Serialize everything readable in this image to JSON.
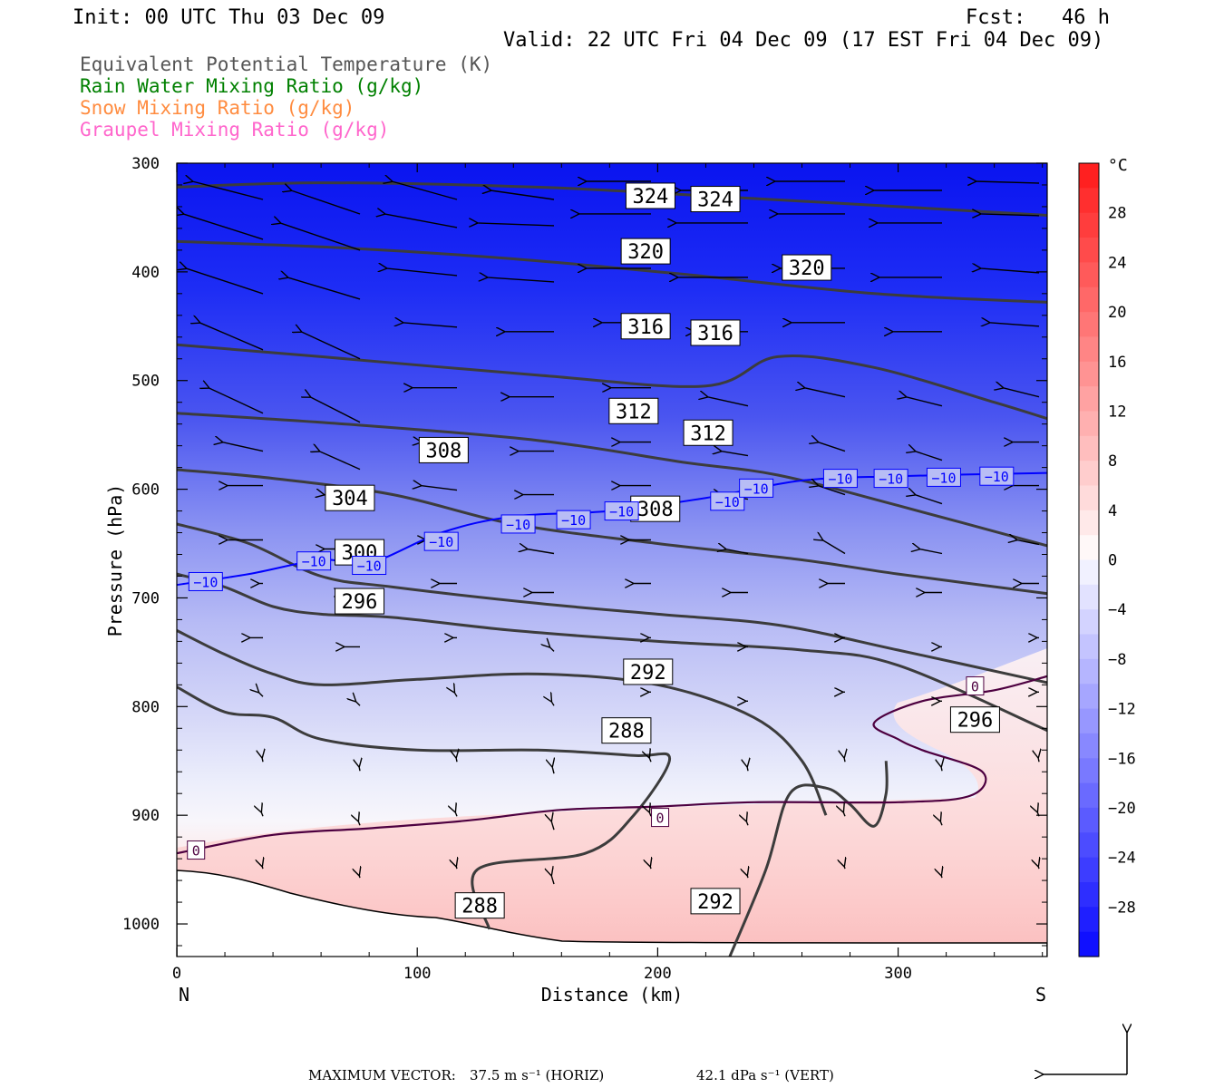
{
  "header": {
    "init": "Init: 00 UTC Thu 03 Dec 09",
    "fcst": "Fcst:   46 h",
    "valid": "Valid: 22 UTC Fri 04 Dec 09 (17 EST Fri 04 Dec 09)"
  },
  "chart_data": {
    "type": "contour",
    "fields": [
      {
        "name": "Equivalent Potential Temperature (K)",
        "color": "#555555"
      },
      {
        "name": "Rain Water Mixing Ratio (g/kg)",
        "color": "#008000"
      },
      {
        "name": "Snow Mixing Ratio (g/kg)",
        "color": "#ff8c40"
      },
      {
        "name": "Graupel Mixing Ratio (g/kg)",
        "color": "#ff66cc"
      }
    ],
    "xlabel": "Distance (km)",
    "ylabel": "Pressure (hPa)",
    "xlim": [
      0,
      362
    ],
    "ylim": [
      1030,
      300
    ],
    "xticks": [
      0,
      100,
      200,
      300
    ],
    "yticks": [
      300,
      400,
      500,
      600,
      700,
      800,
      900,
      1000
    ],
    "x_end_labels": {
      "left": "N",
      "right": "S"
    },
    "colorbar": {
      "unit": "°C",
      "range": [
        -32,
        32
      ],
      "ticks": [
        28,
        24,
        20,
        16,
        12,
        8,
        4,
        0,
        -4,
        -8,
        -12,
        -16,
        -20,
        -24,
        -28
      ]
    },
    "theta_e_lines": [
      {
        "level": 324,
        "points": [
          [
            0,
            322
          ],
          [
            60,
            318
          ],
          [
            150,
            322
          ],
          [
            220,
            330
          ],
          [
            300,
            340
          ],
          [
            362,
            348
          ]
        ]
      },
      {
        "level": 320,
        "points": [
          [
            0,
            372
          ],
          [
            70,
            378
          ],
          [
            140,
            388
          ],
          [
            210,
            402
          ],
          [
            290,
            420
          ],
          [
            362,
            428
          ]
        ]
      },
      {
        "level": 316,
        "points": [
          [
            0,
            467
          ],
          [
            60,
            478
          ],
          [
            150,
            495
          ],
          [
            220,
            505
          ],
          [
            250,
            478
          ],
          [
            290,
            488
          ],
          [
            340,
            520
          ],
          [
            362,
            535
          ]
        ]
      },
      {
        "level": 312,
        "points": [
          [
            0,
            530
          ],
          [
            70,
            540
          ],
          [
            150,
            555
          ],
          [
            210,
            575
          ],
          [
            250,
            587
          ],
          [
            300,
            615
          ],
          [
            362,
            652
          ]
        ]
      },
      {
        "level": 308,
        "points": [
          [
            0,
            582
          ],
          [
            40,
            590
          ],
          [
            90,
            605
          ],
          [
            140,
            632
          ],
          [
            200,
            650
          ],
          [
            260,
            665
          ],
          [
            300,
            678
          ],
          [
            362,
            696
          ]
        ]
      },
      {
        "level": 304,
        "points": [
          [
            0,
            632
          ],
          [
            30,
            650
          ],
          [
            60,
            680
          ],
          [
            90,
            690
          ],
          [
            150,
            705
          ],
          [
            200,
            715
          ],
          [
            250,
            725
          ],
          [
            300,
            748
          ],
          [
            362,
            778
          ]
        ]
      },
      {
        "level": 300,
        "points": [
          [
            0,
            678
          ],
          [
            20,
            690
          ],
          [
            40,
            708
          ],
          [
            60,
            715
          ],
          [
            90,
            718
          ],
          [
            140,
            730
          ],
          [
            200,
            740
          ],
          [
            260,
            748
          ],
          [
            300,
            762
          ],
          [
            362,
            822
          ]
        ]
      },
      {
        "level": 296,
        "points": [
          [
            0,
            730
          ],
          [
            20,
            752
          ],
          [
            40,
            770
          ],
          [
            60,
            780
          ],
          [
            100,
            775
          ],
          [
            150,
            770
          ],
          [
            200,
            780
          ],
          [
            240,
            810
          ],
          [
            260,
            850
          ],
          [
            270,
            900
          ]
        ]
      },
      {
        "level": 292,
        "points": [
          [
            0,
            782
          ],
          [
            20,
            805
          ],
          [
            40,
            810
          ],
          [
            60,
            830
          ],
          [
            100,
            840
          ],
          [
            150,
            840
          ],
          [
            190,
            845
          ],
          [
            205,
            848
          ],
          [
            190,
            900
          ],
          [
            170,
            935
          ],
          [
            125,
            950
          ],
          [
            130,
            1005
          ]
        ]
      },
      {
        "level": 288,
        "points": [
          [
            230,
            1030
          ],
          [
            245,
            950
          ],
          [
            255,
            880
          ],
          [
            270,
            875
          ],
          [
            280,
            890
          ],
          [
            290,
            910
          ],
          [
            295,
            880
          ],
          [
            295,
            850
          ]
        ]
      }
    ],
    "theta_e_labels": [
      {
        "x": 197,
        "y": 330,
        "text": "324"
      },
      {
        "x": 224,
        "y": 333,
        "text": "324"
      },
      {
        "x": 195,
        "y": 381,
        "text": "320"
      },
      {
        "x": 262,
        "y": 396,
        "text": "320"
      },
      {
        "x": 195,
        "y": 450,
        "text": "316"
      },
      {
        "x": 224,
        "y": 456,
        "text": "316"
      },
      {
        "x": 190,
        "y": 528,
        "text": "312"
      },
      {
        "x": 221,
        "y": 548,
        "text": "312"
      },
      {
        "x": 111,
        "y": 564,
        "text": "308"
      },
      {
        "x": 199,
        "y": 618,
        "text": "308"
      },
      {
        "x": 72,
        "y": 608,
        "text": "304"
      },
      {
        "x": 76,
        "y": 658,
        "text": "300"
      },
      {
        "x": 76,
        "y": 703,
        "text": "296"
      },
      {
        "x": 196,
        "y": 768,
        "text": "292"
      },
      {
        "x": 224,
        "y": 979,
        "text": "292"
      },
      {
        "x": 332,
        "y": 812,
        "text": "296"
      },
      {
        "x": 187,
        "y": 822,
        "text": "288"
      },
      {
        "x": 126,
        "y": 983,
        "text": "288"
      }
    ],
    "temperature_lines": [
      {
        "level": -10,
        "color": "#0000ff",
        "points": [
          [
            0,
            688
          ],
          [
            30,
            678
          ],
          [
            60,
            665
          ],
          [
            80,
            668
          ],
          [
            110,
            640
          ],
          [
            140,
            625
          ],
          [
            180,
            620
          ],
          [
            220,
            608
          ],
          [
            260,
            592
          ],
          [
            300,
            588
          ],
          [
            362,
            585
          ]
        ],
        "labels": [
          [
            12,
            685
          ],
          [
            57,
            666
          ],
          [
            80,
            670
          ],
          [
            110,
            648
          ],
          [
            142,
            632
          ],
          [
            165,
            628
          ],
          [
            185,
            620
          ],
          [
            229,
            611
          ],
          [
            241,
            599
          ],
          [
            276,
            590
          ],
          [
            297,
            590
          ],
          [
            319,
            589
          ],
          [
            341,
            588
          ]
        ]
      },
      {
        "level": 0,
        "color": "#4d0040",
        "points": [
          [
            0,
            935
          ],
          [
            40,
            918
          ],
          [
            80,
            912
          ],
          [
            120,
            905
          ],
          [
            160,
            895
          ],
          [
            200,
            892
          ],
          [
            240,
            888
          ],
          [
            300,
            888
          ],
          [
            330,
            882
          ],
          [
            335,
            860
          ],
          [
            310,
            840
          ],
          [
            300,
            830
          ],
          [
            290,
            815
          ],
          [
            310,
            795
          ],
          [
            340,
            785
          ],
          [
            362,
            772
          ]
        ],
        "labels": [
          [
            8,
            932
          ],
          [
            201,
            902
          ],
          [
            332,
            781
          ]
        ]
      }
    ],
    "max_vector": {
      "horizontal": "37.5 m s⁻¹ (HORIZ)",
      "vertical": "42.1 dPa s⁻¹ (VERT)",
      "label": "MAXIMUM VECTOR:"
    }
  }
}
